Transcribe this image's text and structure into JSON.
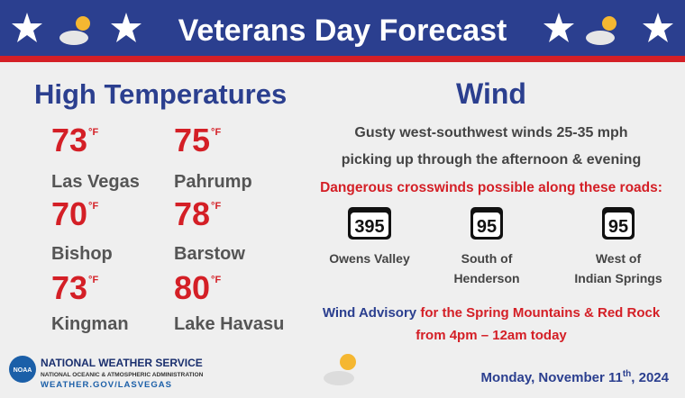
{
  "header": {
    "title": "Veterans Day Forecast"
  },
  "temperatures": {
    "title": "High Temperatures",
    "items": [
      {
        "value": "73",
        "unit": "°F",
        "city": "Las Vegas"
      },
      {
        "value": "75",
        "unit": "°F",
        "city": "Pahrump"
      },
      {
        "value": "70",
        "unit": "°F",
        "city": "Bishop"
      },
      {
        "value": "78",
        "unit": "°F",
        "city": "Barstow"
      },
      {
        "value": "73",
        "unit": "°F",
        "city": "Kingman"
      },
      {
        "value": "80",
        "unit": "°F",
        "city": "Lake Havasu"
      }
    ]
  },
  "wind": {
    "title": "Wind",
    "description": [
      "Gusty west-southwest winds 25-35 mph",
      "picking up through the afternoon & evening"
    ],
    "warning": "Dangerous crosswinds possible along these roads:",
    "routes": [
      {
        "shield": "395",
        "label": [
          "Owens Valley"
        ]
      },
      {
        "shield": "95",
        "label": [
          "South of",
          "Henderson"
        ]
      },
      {
        "shield": "95",
        "label": [
          "West of",
          "Indian Springs"
        ]
      }
    ],
    "advisory": {
      "name": "Wind Advisory",
      "area": "for the Spring Mountains & Red Rock",
      "time": "from 4pm – 12am today"
    }
  },
  "footer": {
    "agency": "NATIONAL WEATHER SERVICE",
    "parent": "NATIONAL OCEANIC & ATMOSPHERIC ADMINISTRATION",
    "url": "WEATHER.GOV/LASVEGAS",
    "logo": "NOAA",
    "date": {
      "main": "Monday, November 11",
      "suffix": "th",
      "year": ", 2024"
    }
  }
}
